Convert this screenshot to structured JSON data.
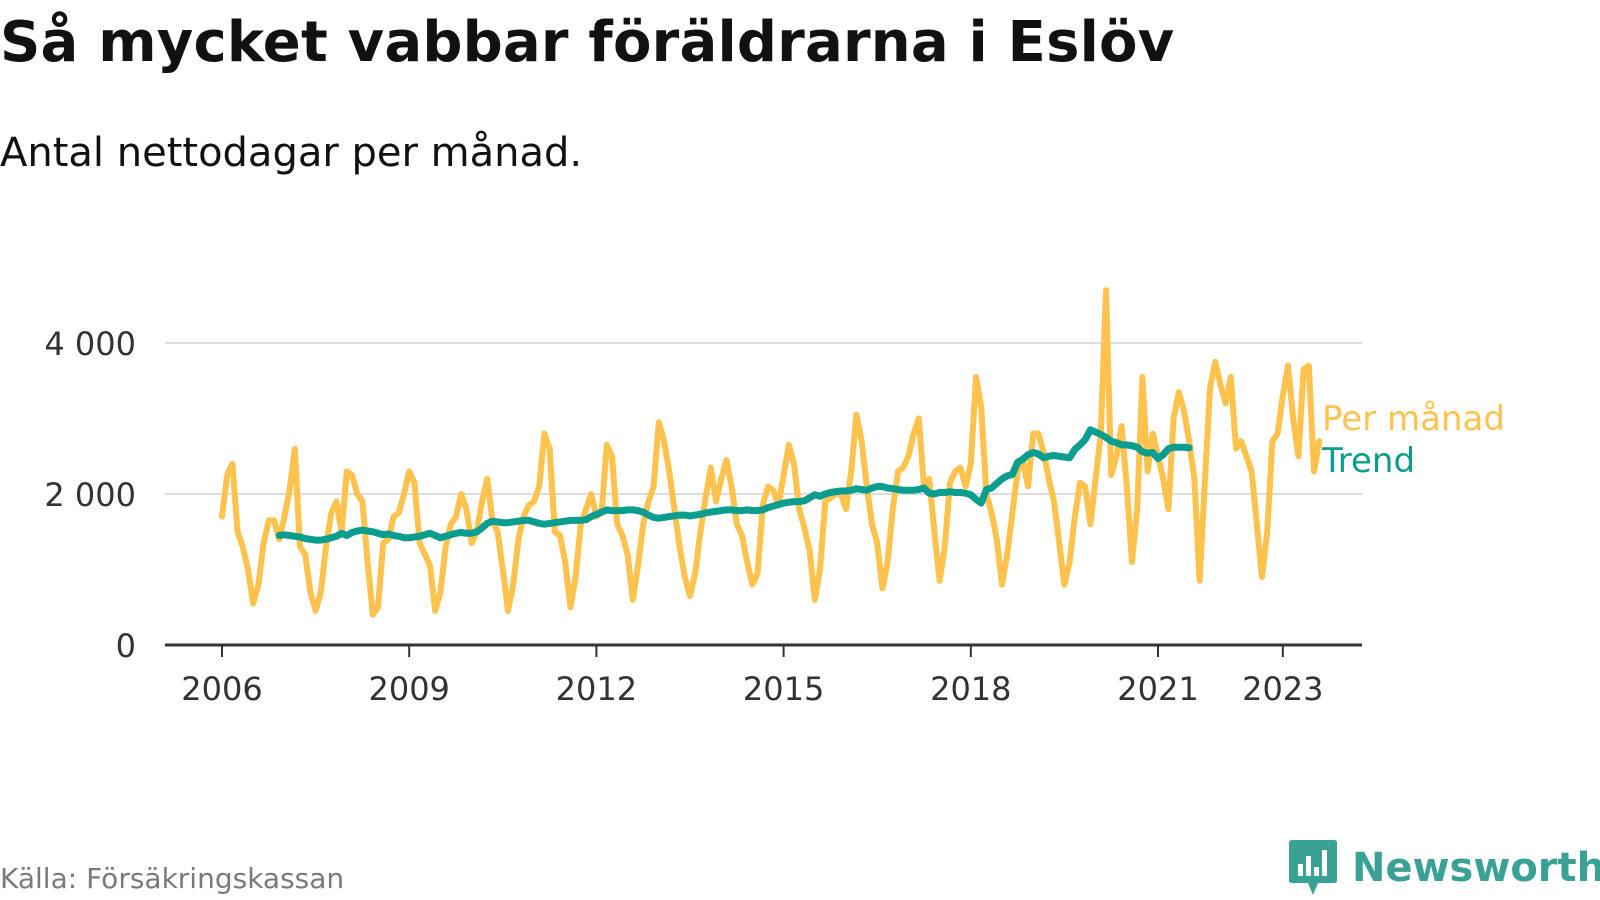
{
  "title": "Så mycket vabbar föräldrarna i Eslöv",
  "subtitle": "Antal nettodagar per månad.",
  "source": "Källa: Försäkringskassan",
  "brand": "Newsworthy",
  "colors": {
    "monthly": "#ffc24d",
    "trend": "#0b9e8e",
    "grid": "#dddddd",
    "axis": "#333333",
    "text": "#111111",
    "brand": "#3aa195"
  },
  "icons": {
    "brand_logo": "bar-chart-speech-bubble-icon"
  },
  "chart_data": {
    "type": "line",
    "title": "Så mycket vabbar föräldrarna i Eslöv",
    "subtitle": "Antal nettodagar per månad.",
    "xlabel": "",
    "ylabel": "",
    "xlim": [
      2005.8,
      2024.8
    ],
    "ylim": [
      0,
      4700
    ],
    "yticks": [
      0,
      2000,
      4000
    ],
    "ytick_labels": [
      "0",
      "2 000",
      "4 000"
    ],
    "xticks": [
      2006,
      2009,
      2012,
      2015,
      2018,
      2021,
      2023
    ],
    "xtick_labels": [
      "2006",
      "2009",
      "2012",
      "2015",
      "2018",
      "2021",
      "2023"
    ],
    "grid": true,
    "legend": "inline-right",
    "series": [
      {
        "name": "Per månad",
        "color": "#ffc24d",
        "start": "2006-01",
        "step": "month",
        "values": [
          1700,
          2250,
          2400,
          1500,
          1300,
          1000,
          550,
          800,
          1350,
          1650,
          1650,
          1400,
          1700,
          2050,
          2600,
          1300,
          1200,
          700,
          450,
          700,
          1300,
          1750,
          1900,
          1500,
          2300,
          2250,
          2000,
          1900,
          1100,
          400,
          500,
          1350,
          1400,
          1700,
          1750,
          2000,
          2300,
          2150,
          1350,
          1200,
          1050,
          450,
          700,
          1300,
          1600,
          1700,
          2000,
          1800,
          1350,
          1500,
          1900,
          2200,
          1650,
          1500,
          1000,
          450,
          800,
          1400,
          1700,
          1850,
          1900,
          2100,
          2800,
          2600,
          1500,
          1450,
          1100,
          500,
          900,
          1600,
          1800,
          2000,
          1700,
          1750,
          2650,
          2500,
          1600,
          1450,
          1200,
          600,
          1050,
          1600,
          1900,
          2100,
          2950,
          2700,
          2300,
          1800,
          1300,
          900,
          650,
          950,
          1500,
          1950,
          2350,
          1900,
          2200,
          2450,
          2100,
          1600,
          1450,
          1100,
          800,
          950,
          1850,
          2100,
          2050,
          1850,
          2250,
          2650,
          2400,
          1800,
          1550,
          1250,
          600,
          1000,
          1900,
          1950,
          2000,
          2000,
          1800,
          2300,
          3050,
          2700,
          2100,
          1600,
          1350,
          750,
          1100,
          1800,
          2300,
          2350,
          2500,
          2800,
          3000,
          2100,
          2200,
          1500,
          850,
          1300,
          2150,
          2300,
          2350,
          2100,
          2400,
          3550,
          3150,
          2000,
          1750,
          1400,
          800,
          1200,
          1750,
          2300,
          2450,
          2100,
          2800,
          2800,
          2550,
          2200,
          1900,
          1350,
          800,
          1100,
          1700,
          2150,
          2100,
          1600,
          2200,
          2800,
          4700,
          2250,
          2500,
          2900,
          2100,
          1100,
          1800,
          3550,
          2300,
          2800,
          2500,
          2200,
          1800,
          3000,
          3350,
          3100,
          2700,
          2200,
          850,
          2150,
          3400,
          3750,
          3450,
          3200,
          3550,
          2600,
          2700,
          2500,
          2300,
          1600,
          900,
          1500,
          2700,
          2800,
          3300,
          3700,
          3000,
          2500,
          3650,
          3700,
          2300,
          2700
        ]
      },
      {
        "name": "Trend",
        "color": "#0b9e8e",
        "start": "2006-12",
        "step": "month",
        "values": [
          1450,
          1460,
          1450,
          1440,
          1430,
          1410,
          1400,
          1390,
          1390,
          1400,
          1420,
          1440,
          1480,
          1450,
          1490,
          1510,
          1520,
          1510,
          1500,
          1480,
          1460,
          1470,
          1450,
          1440,
          1420,
          1420,
          1430,
          1440,
          1460,
          1480,
          1450,
          1420,
          1440,
          1460,
          1480,
          1490,
          1480,
          1480,
          1500,
          1550,
          1610,
          1640,
          1630,
          1620,
          1620,
          1630,
          1640,
          1650,
          1650,
          1630,
          1610,
          1600,
          1610,
          1620,
          1630,
          1640,
          1650,
          1650,
          1650,
          1660,
          1700,
          1730,
          1760,
          1790,
          1780,
          1780,
          1780,
          1790,
          1790,
          1780,
          1760,
          1720,
          1690,
          1680,
          1690,
          1700,
          1710,
          1720,
          1720,
          1710,
          1720,
          1730,
          1750,
          1760,
          1770,
          1780,
          1790,
          1790,
          1780,
          1780,
          1790,
          1780,
          1780,
          1790,
          1820,
          1840,
          1860,
          1880,
          1890,
          1900,
          1900,
          1910,
          1950,
          1990,
          1970,
          2000,
          2020,
          2030,
          2040,
          2040,
          2050,
          2070,
          2060,
          2050,
          2080,
          2100,
          2100,
          2080,
          2070,
          2060,
          2050,
          2050,
          2050,
          2060,
          2080,
          2010,
          2000,
          2020,
          2020,
          2030,
          2020,
          2020,
          2010,
          1990,
          1930,
          1880,
          2060,
          2080,
          2140,
          2200,
          2240,
          2260,
          2420,
          2460,
          2520,
          2550,
          2530,
          2480,
          2500,
          2510,
          2500,
          2490,
          2480,
          2590,
          2650,
          2720,
          2850,
          2820,
          2790,
          2750,
          2700,
          2680,
          2650,
          2650,
          2640,
          2620,
          2560,
          2540,
          2550,
          2470,
          2520,
          2600,
          2620,
          2620,
          2620,
          2610
        ]
      }
    ]
  }
}
